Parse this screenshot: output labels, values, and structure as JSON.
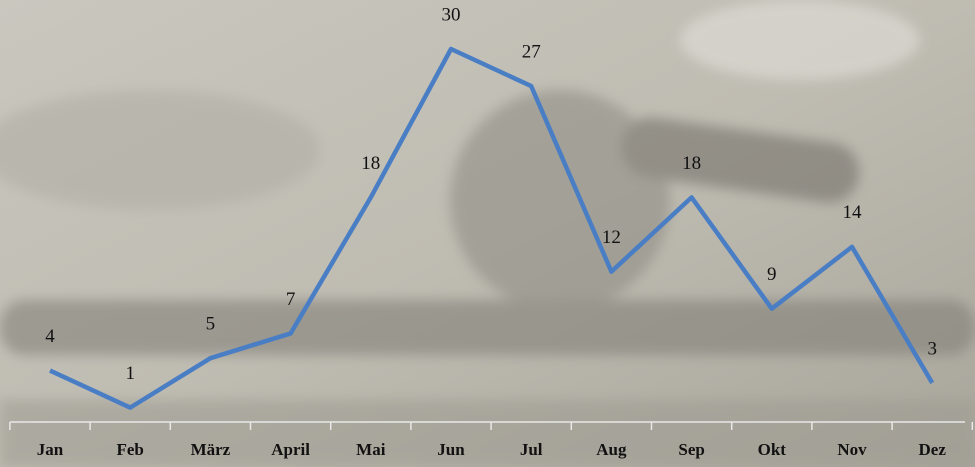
{
  "chart_data": {
    "type": "line",
    "categories": [
      "Jan",
      "Feb",
      "März",
      "April",
      "Mai",
      "Jun",
      "Jul",
      "Aug",
      "Sep",
      "Okt",
      "Nov",
      "Dez"
    ],
    "values": [
      4,
      1,
      5,
      7,
      18,
      30,
      27,
      12,
      18,
      9,
      14,
      3
    ],
    "color": "#4a7ec4"
  }
}
